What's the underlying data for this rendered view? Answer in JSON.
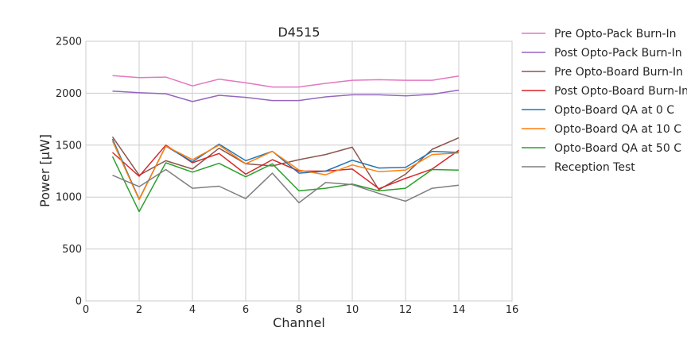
{
  "chart_data": {
    "type": "line",
    "title": "D4515",
    "xlabel": "Channel",
    "ylabel": "Power [μW]",
    "xlim": [
      0,
      16
    ],
    "ylim": [
      0,
      2500
    ],
    "x_ticks": [
      "0",
      "2",
      "4",
      "6",
      "8",
      "10",
      "12",
      "14",
      "16"
    ],
    "y_ticks": [
      "0",
      "500",
      "1000",
      "1500",
      "2000",
      "2500"
    ],
    "grid": true,
    "legend_position": "outside-right",
    "x": [
      1,
      2,
      3,
      4,
      5,
      6,
      7,
      8,
      9,
      10,
      11,
      12,
      13,
      14
    ],
    "series": [
      {
        "name": "Pre Opto-Pack Burn-In",
        "color": "#e377c2",
        "values": [
          2170,
          2150,
          2155,
          2070,
          2135,
          2100,
          2060,
          2060,
          2095,
          2125,
          2130,
          2125,
          2125,
          2165
        ]
      },
      {
        "name": "Post Opto-Pack Burn-In",
        "color": "#9467bd",
        "values": [
          2020,
          2005,
          1995,
          1920,
          1980,
          1960,
          1930,
          1930,
          1965,
          1985,
          1985,
          1975,
          1990,
          2030
        ]
      },
      {
        "name": "Pre Opto-Board Burn-In",
        "color": "#8c564b",
        "values": [
          1580,
          1210,
          1350,
          1270,
          1470,
          1320,
          1300,
          1360,
          1410,
          1480,
          1070,
          1220,
          1460,
          1570
        ]
      },
      {
        "name": "Post Opto-Board Burn-In",
        "color": "#d62728",
        "values": [
          1430,
          1200,
          1500,
          1330,
          1420,
          1220,
          1360,
          1250,
          1250,
          1270,
          1080,
          1180,
          1270,
          1450
        ]
      },
      {
        "name": "Opto-Board QA at 0 C",
        "color": "#1f77b4",
        "values": [
          1560,
          980,
          1490,
          1340,
          1510,
          1350,
          1440,
          1230,
          1250,
          1355,
          1280,
          1285,
          1440,
          1430
        ]
      },
      {
        "name": "Opto-Board QA at 10 C",
        "color": "#ff7f0e",
        "values": [
          1540,
          975,
          1490,
          1360,
          1500,
          1320,
          1440,
          1260,
          1215,
          1310,
          1245,
          1260,
          1410,
          1425
        ]
      },
      {
        "name": "Opto-Board QA at 50 C",
        "color": "#2ca02c",
        "values": [
          1390,
          860,
          1330,
          1240,
          1325,
          1195,
          1320,
          1060,
          1085,
          1125,
          1060,
          1085,
          1265,
          1260
        ]
      },
      {
        "name": "Reception Test",
        "color": "#7f7f7f",
        "values": [
          1210,
          1100,
          1265,
          1085,
          1105,
          985,
          1230,
          945,
          1140,
          1120,
          1035,
          960,
          1085,
          1115
        ]
      }
    ]
  }
}
